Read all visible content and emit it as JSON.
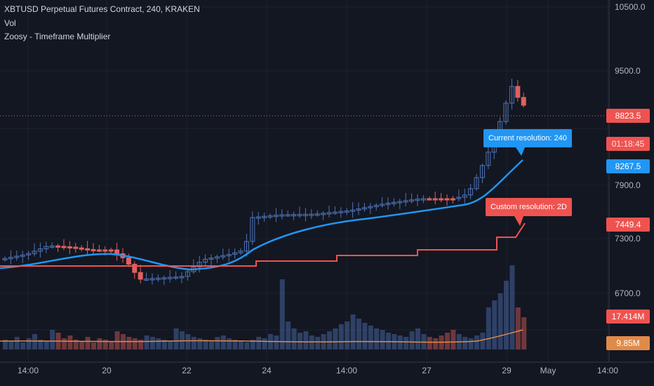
{
  "header": {
    "symbol": "XBTUSD Perpetual Futures Contract, 240, KRAKEN",
    "indicator1": "Vol",
    "indicator2": "Zoosy - Timeframe Multiplier"
  },
  "annotations": {
    "current_label": "Current resolution: 240",
    "custom_label": "Custom resolution: 2D"
  },
  "price_tags": {
    "last_price": "8823.5",
    "countdown": "01:18:45",
    "current_ma": "8267.5",
    "custom_ma": "7449.4",
    "volume": "17.414M",
    "volume_ma": "9.85M"
  },
  "colors": {
    "background": "#131722",
    "up": "#4f74b8",
    "down": "#e0605e",
    "current_line": "#2196f3",
    "custom_line": "#ef5350",
    "volume_ma": "#e08a4a"
  },
  "chart_data": {
    "type": "candlestick",
    "y_ticks": [
      "10500.0",
      "9500.0",
      "7900.0",
      "7300.0",
      "6700.0"
    ],
    "x_ticks": [
      "14:00",
      "20",
      "22",
      "24",
      "14:00",
      "27",
      "29",
      "May",
      "14:00"
    ],
    "ylim": [
      6150,
      10700
    ],
    "x_axis_position": "bottom",
    "y_axis_position": "right",
    "grid": true
  }
}
